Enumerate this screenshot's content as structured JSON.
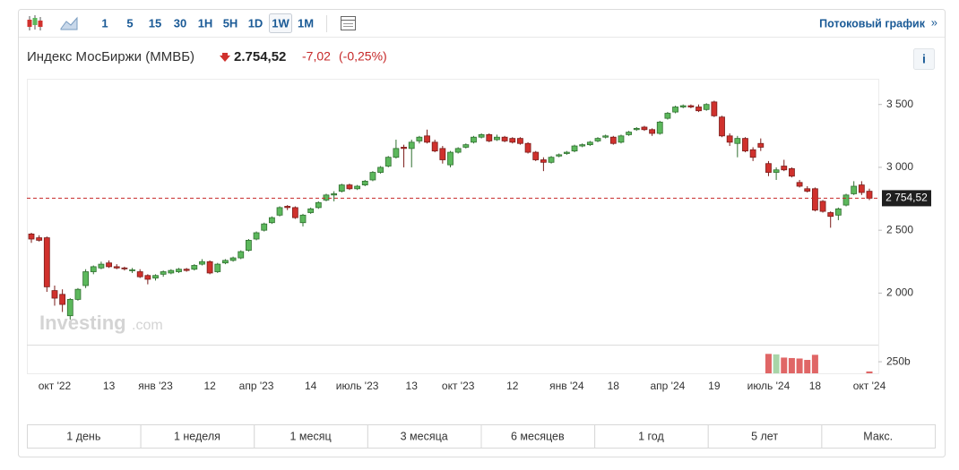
{
  "toolbar": {
    "intervals": [
      "1",
      "5",
      "15",
      "30",
      "1H",
      "5H",
      "1D",
      "1W",
      "1M"
    ],
    "selected": 7,
    "stream_link": "Потоковый график",
    "stream_arrow": "»"
  },
  "header": {
    "title": "Индекс МосБиржи (ММВБ)",
    "price": "2.754,52",
    "change": "-7,02",
    "change_percent": "(-0,25%)",
    "info": "i"
  },
  "watermark": {
    "brand": "Investing",
    "suffix": ".com"
  },
  "ranges": [
    "1 день",
    "1 неделя",
    "1 месяц",
    "3 месяца",
    "6 месяцев",
    "1 год",
    "5 лет",
    "Макс."
  ],
  "chart_data": {
    "type": "candlestick",
    "categories": [
      null,
      null,
      null,
      "окт '22",
      null,
      null,
      null,
      null,
      null,
      null,
      "13",
      null,
      null,
      null,
      null,
      null,
      "янв '23",
      null,
      null,
      null,
      null,
      null,
      null,
      "12",
      null,
      null,
      null,
      null,
      null,
      "апр '23",
      null,
      null,
      null,
      null,
      null,
      null,
      "14",
      null,
      null,
      null,
      null,
      null,
      "июль '23",
      null,
      null,
      null,
      null,
      null,
      null,
      "13",
      null,
      null,
      null,
      null,
      null,
      "окт '23",
      null,
      null,
      null,
      null,
      null,
      null,
      "12",
      null,
      null,
      null,
      null,
      null,
      null,
      "янв '24",
      null,
      null,
      null,
      null,
      null,
      "18",
      null,
      null,
      null,
      null,
      null,
      null,
      "апр '24",
      null,
      null,
      null,
      null,
      null,
      "19",
      null,
      null,
      null,
      null,
      null,
      null,
      "июль '24",
      null,
      null,
      null,
      null,
      null,
      "18",
      null,
      null,
      null,
      null,
      null,
      null,
      "окт '24"
    ],
    "open": [
      2470,
      2440,
      2440,
      2020,
      1990,
      1820,
      1950,
      2060,
      2170,
      2200,
      2240,
      2210,
      2200,
      2180,
      2170,
      2140,
      2120,
      2150,
      2160,
      2170,
      2190,
      2190,
      2230,
      2250,
      2170,
      2240,
      2260,
      2280,
      2340,
      2430,
      2500,
      2560,
      2620,
      2690,
      2680,
      2560,
      2640,
      2680,
      2740,
      2780,
      2810,
      2860,
      2830,
      2860,
      2900,
      2960,
      3010,
      3080,
      3160,
      3150,
      3210,
      3250,
      3200,
      3150,
      3020,
      3120,
      3160,
      3200,
      3240,
      3260,
      3220,
      3240,
      3230,
      3230,
      3190,
      3120,
      3060,
      3040,
      3090,
      3110,
      3130,
      3170,
      3180,
      3210,
      3240,
      3240,
      3200,
      3260,
      3300,
      3320,
      3300,
      3270,
      3390,
      3440,
      3480,
      3490,
      3480,
      3460,
      3520,
      3400,
      3250,
      3190,
      3230,
      3140,
      3190,
      3030,
      2960,
      3010,
      2990,
      2880,
      2830,
      2830,
      2730,
      2640,
      2620,
      2700,
      2790,
      2860,
      2810
    ],
    "high": [
      2480,
      2460,
      2450,
      2060,
      2030,
      1960,
      2040,
      2190,
      2220,
      2250,
      2260,
      2230,
      2210,
      2200,
      2190,
      2150,
      2150,
      2180,
      2190,
      2200,
      2200,
      2230,
      2270,
      2260,
      2240,
      2270,
      2290,
      2340,
      2430,
      2490,
      2560,
      2610,
      2690,
      2700,
      2690,
      2630,
      2680,
      2730,
      2790,
      2810,
      2870,
      2870,
      2860,
      2900,
      2970,
      3010,
      3090,
      3220,
      3180,
      3220,
      3250,
      3300,
      3220,
      3170,
      3130,
      3160,
      3190,
      3250,
      3270,
      3270,
      3260,
      3250,
      3240,
      3240,
      3200,
      3130,
      3080,
      3090,
      3110,
      3130,
      3180,
      3190,
      3210,
      3240,
      3260,
      3250,
      3260,
      3290,
      3320,
      3330,
      3310,
      3370,
      3440,
      3490,
      3500,
      3500,
      3500,
      3510,
      3530,
      3410,
      3270,
      3250,
      3240,
      3160,
      3230,
      3050,
      3000,
      3060,
      3000,
      2900,
      2850,
      2840,
      2740,
      2650,
      2680,
      2790,
      2890,
      2890,
      2830
    ],
    "low": [
      2400,
      2410,
      2010,
      1900,
      1850,
      1790,
      1940,
      2040,
      2150,
      2190,
      2200,
      2190,
      2180,
      2160,
      2120,
      2070,
      2100,
      2130,
      2150,
      2160,
      2170,
      2180,
      2220,
      2150,
      2160,
      2230,
      2250,
      2270,
      2330,
      2420,
      2490,
      2550,
      2610,
      2660,
      2590,
      2530,
      2630,
      2670,
      2730,
      2730,
      2800,
      2820,
      2820,
      2850,
      2890,
      2950,
      3000,
      3070,
      3000,
      3000,
      3190,
      3190,
      3120,
      3030,
      3000,
      3110,
      3150,
      3190,
      3230,
      3200,
      3210,
      3200,
      3190,
      3180,
      3110,
      3050,
      2970,
      3030,
      3080,
      3100,
      3120,
      3160,
      3170,
      3200,
      3230,
      3180,
      3190,
      3250,
      3290,
      3290,
      3250,
      3260,
      3380,
      3430,
      3470,
      3470,
      3440,
      3450,
      3400,
      3240,
      3170,
      3080,
      3120,
      3050,
      3130,
      2930,
      2900,
      2970,
      2920,
      2840,
      2800,
      2650,
      2640,
      2520,
      2580,
      2690,
      2780,
      2780,
      2740
    ],
    "close": [
      2430,
      2420,
      2050,
      1960,
      1910,
      1950,
      2030,
      2170,
      2210,
      2230,
      2210,
      2200,
      2195,
      2185,
      2130,
      2110,
      2140,
      2170,
      2180,
      2190,
      2180,
      2220,
      2250,
      2160,
      2230,
      2260,
      2280,
      2330,
      2420,
      2480,
      2550,
      2600,
      2680,
      2680,
      2600,
      2620,
      2670,
      2720,
      2780,
      2790,
      2860,
      2830,
      2850,
      2890,
      2960,
      3000,
      3080,
      3150,
      3150,
      3200,
      3240,
      3200,
      3130,
      3060,
      3120,
      3150,
      3180,
      3240,
      3260,
      3210,
      3240,
      3210,
      3200,
      3190,
      3120,
      3060,
      3040,
      3080,
      3100,
      3120,
      3170,
      3180,
      3200,
      3230,
      3250,
      3190,
      3250,
      3280,
      3310,
      3300,
      3270,
      3360,
      3430,
      3480,
      3490,
      3480,
      3450,
      3500,
      3410,
      3250,
      3200,
      3230,
      3130,
      3080,
      3160,
      2960,
      2980,
      2980,
      2930,
      2850,
      2810,
      2660,
      2650,
      2610,
      2670,
      2780,
      2850,
      2800,
      2754.52
    ],
    "volume": [
      null,
      null,
      null,
      null,
      null,
      null,
      null,
      null,
      null,
      null,
      null,
      null,
      null,
      null,
      null,
      null,
      null,
      null,
      null,
      null,
      null,
      null,
      null,
      null,
      null,
      null,
      null,
      null,
      null,
      null,
      null,
      null,
      null,
      null,
      null,
      null,
      null,
      null,
      null,
      null,
      null,
      null,
      null,
      null,
      null,
      null,
      null,
      null,
      null,
      null,
      null,
      null,
      null,
      null,
      null,
      null,
      null,
      null,
      null,
      null,
      null,
      null,
      null,
      null,
      null,
      null,
      null,
      null,
      null,
      null,
      null,
      null,
      null,
      null,
      null,
      null,
      null,
      null,
      null,
      null,
      null,
      null,
      null,
      null,
      null,
      null,
      null,
      null,
      null,
      null,
      null,
      null,
      null,
      null,
      null,
      420,
      410,
      340,
      330,
      320,
      290,
      400,
      null,
      null,
      null,
      null,
      null,
      null,
      40
    ],
    "ylim": [
      1590,
      3690
    ],
    "yticks": [
      {
        "value": 2000,
        "label": "2 000"
      },
      {
        "value": 2500,
        "label": "2 500"
      },
      {
        "value": 3000,
        "label": "3 000"
      },
      {
        "value": 3500,
        "label": "3 500"
      }
    ],
    "volume_lim": [
      0,
      600
    ],
    "volume_ticks": [
      {
        "value": 250,
        "label": "250b"
      }
    ],
    "last_value": 2754.52,
    "last_value_label": "2 754,52",
    "grid": false,
    "up_color": "#5cb85c",
    "down_color": "#d0312d",
    "volume_up_color": "#a8d5a8",
    "volume_down_color": "#e06666",
    "last_line_color": "#c62828"
  }
}
